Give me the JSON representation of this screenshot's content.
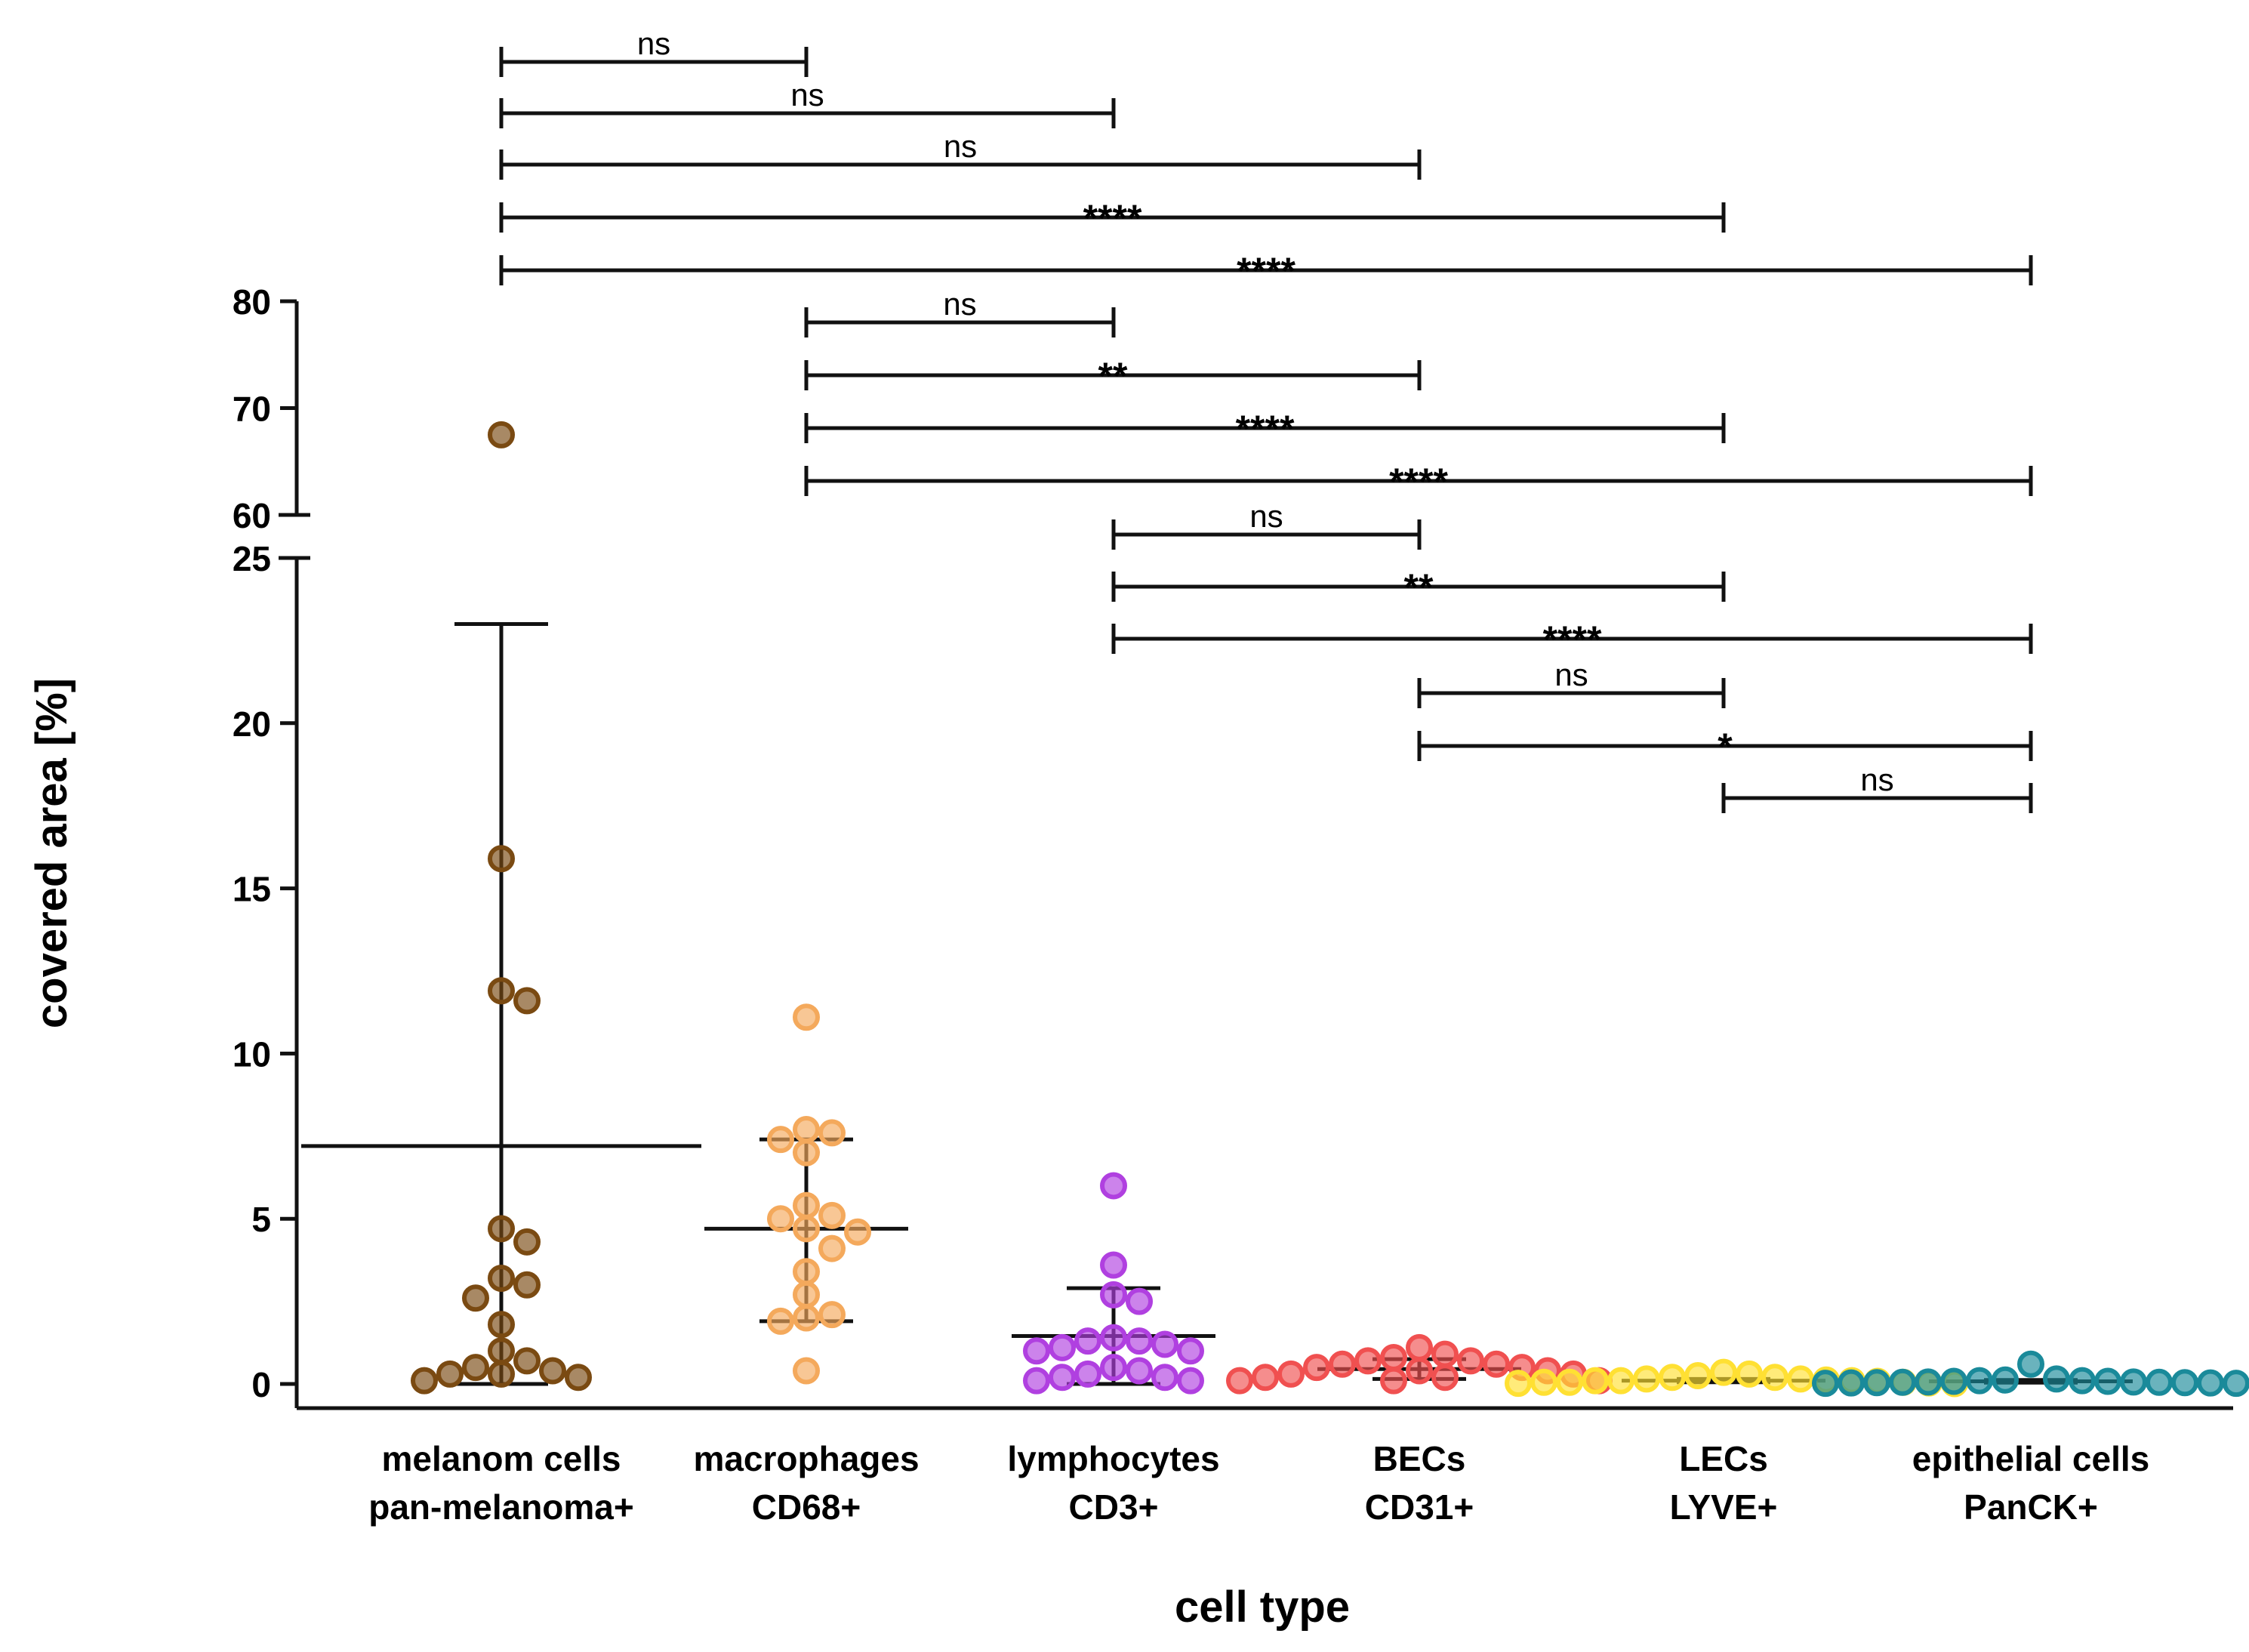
{
  "chart_data": {
    "type": "scatter",
    "subtype": "dot-plot with mean and SD bars, broken y-axis",
    "xlabel": "cell type",
    "ylabel": "covered area [%]",
    "y_axis": {
      "break": true,
      "lower_range": [
        0,
        25
      ],
      "upper_range": [
        60,
        80
      ],
      "lower_ticks": [
        "0",
        "5",
        "10",
        "15",
        "20",
        "25"
      ],
      "upper_ticks": [
        "60",
        "70",
        "80"
      ]
    },
    "grid": false,
    "legend": "none",
    "categories": [
      {
        "line1": "melanom cells",
        "line2": "pan-melanoma+"
      },
      {
        "line1": "macrophages",
        "line2": "CD68+"
      },
      {
        "line1": "lymphocytes",
        "line2": "CD3+"
      },
      {
        "line1": "BECs",
        "line2": "CD31+"
      },
      {
        "line1": "LECs",
        "line2": "LYVE+"
      },
      {
        "line1": "epithelial cells",
        "line2": "PanCK+"
      }
    ],
    "series": [
      {
        "color": "#7a4a12",
        "mean": 7.2,
        "sd_low": 0,
        "sd_high": 23.0,
        "values": [
          67.5,
          15.9,
          11.9,
          11.6,
          4.7,
          4.3,
          3.2,
          3.0,
          2.6,
          1.8,
          1.0,
          0.7,
          0.5,
          0.4,
          0.3,
          0.3,
          0.2,
          0.1
        ]
      },
      {
        "color": "#f4a95c",
        "mean": 4.7,
        "sd_low": 1.9,
        "sd_high": 7.4,
        "values": [
          11.1,
          7.7,
          7.6,
          7.4,
          7.0,
          5.4,
          5.1,
          5.0,
          4.7,
          4.6,
          4.1,
          3.4,
          2.7,
          2.1,
          2.0,
          1.9,
          0.4
        ]
      },
      {
        "color": "#b040e0",
        "mean": 1.45,
        "sd_low": 0,
        "sd_high": 2.9,
        "values": [
          6.0,
          3.6,
          2.7,
          2.5,
          1.4,
          1.3,
          1.3,
          1.2,
          1.1,
          1.0,
          1.0,
          0.5,
          0.4,
          0.3,
          0.2,
          0.2,
          0.1,
          0.1
        ]
      },
      {
        "color": "#f05050",
        "mean": 0.45,
        "sd_low": 0.15,
        "sd_high": 0.75,
        "values": [
          1.1,
          0.9,
          0.8,
          0.7,
          0.7,
          0.6,
          0.6,
          0.5,
          0.5,
          0.4,
          0.4,
          0.3,
          0.3,
          0.2,
          0.2,
          0.1,
          0.1,
          0.1
        ]
      },
      {
        "color": "#ffe033",
        "mean": 0.1,
        "sd_low": 0.05,
        "sd_high": 0.15,
        "values": [
          0.35,
          0.3,
          0.25,
          0.2,
          0.2,
          0.15,
          0.15,
          0.12,
          0.1,
          0.1,
          0.1,
          0.08,
          0.05,
          0.05,
          0.05,
          0.03,
          0.02,
          0.01
        ]
      },
      {
        "color": "#1a8a9a",
        "mean": 0.08,
        "sd_low": 0.04,
        "sd_high": 0.12,
        "values": [
          0.6,
          0.15,
          0.12,
          0.1,
          0.1,
          0.08,
          0.08,
          0.06,
          0.06,
          0.05,
          0.05,
          0.04,
          0.04,
          0.03,
          0.03,
          0.02,
          0.02,
          0.01
        ]
      }
    ],
    "comparisons": [
      {
        "from": 0,
        "to": 1,
        "label": "ns"
      },
      {
        "from": 0,
        "to": 2,
        "label": "ns"
      },
      {
        "from": 0,
        "to": 3,
        "label": "ns"
      },
      {
        "from": 0,
        "to": 4,
        "label": "****"
      },
      {
        "from": 0,
        "to": 5,
        "label": "****"
      },
      {
        "from": 1,
        "to": 2,
        "label": "ns"
      },
      {
        "from": 1,
        "to": 3,
        "label": "**"
      },
      {
        "from": 1,
        "to": 4,
        "label": "****"
      },
      {
        "from": 1,
        "to": 5,
        "label": "****"
      },
      {
        "from": 2,
        "to": 3,
        "label": "ns"
      },
      {
        "from": 2,
        "to": 4,
        "label": "**"
      },
      {
        "from": 2,
        "to": 5,
        "label": "****"
      },
      {
        "from": 3,
        "to": 4,
        "label": "ns"
      },
      {
        "from": 3,
        "to": 5,
        "label": "*"
      },
      {
        "from": 4,
        "to": 5,
        "label": "ns"
      }
    ]
  }
}
